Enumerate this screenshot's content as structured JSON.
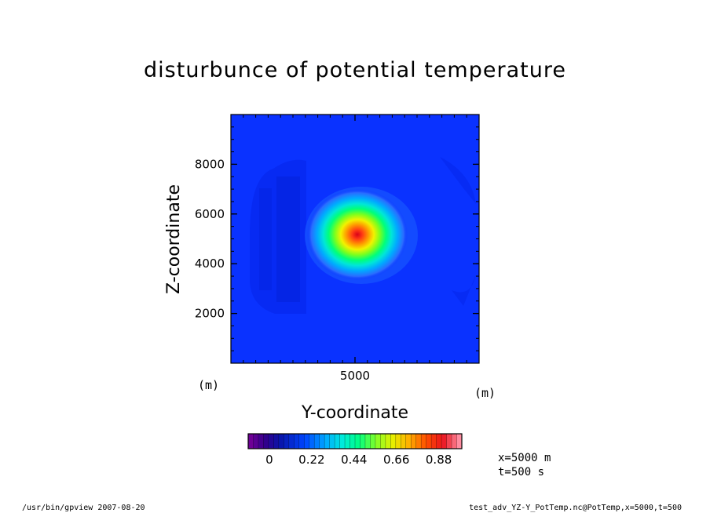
{
  "chart_data": {
    "type": "heatmap",
    "title": "disturbunce of potential temperature",
    "xlabel": "Y-coordinate",
    "ylabel": "Z-coordinate",
    "x_unit": "(m)",
    "y_unit": "(m)",
    "xlim": [
      0,
      10000
    ],
    "ylim": [
      0,
      10000
    ],
    "x_ticks": [
      5000
    ],
    "y_ticks": [
      2000,
      4000,
      6000,
      8000
    ],
    "peak": {
      "y": 5000,
      "z": 5000,
      "value": 0.95
    },
    "colorbar": {
      "min": -0.11,
      "max": 1.0,
      "tick_values": [
        0,
        0.22,
        0.44,
        0.66,
        0.88
      ],
      "tick_labels": [
        "0",
        "0.22",
        "0.44",
        "0.66",
        "0.88"
      ]
    }
  },
  "annotation": {
    "x_value": "x=5000 m",
    "t_value": "t=500 s"
  },
  "footer": {
    "left": "/usr/bin/gpview   2007-08-20",
    "right": "test_adv_YZ-Y_PotTemp.nc@PotTemp,x=5000,t=500"
  },
  "colors": {
    "background_field": "#0a32ff",
    "peak": "#ff1a1a"
  }
}
